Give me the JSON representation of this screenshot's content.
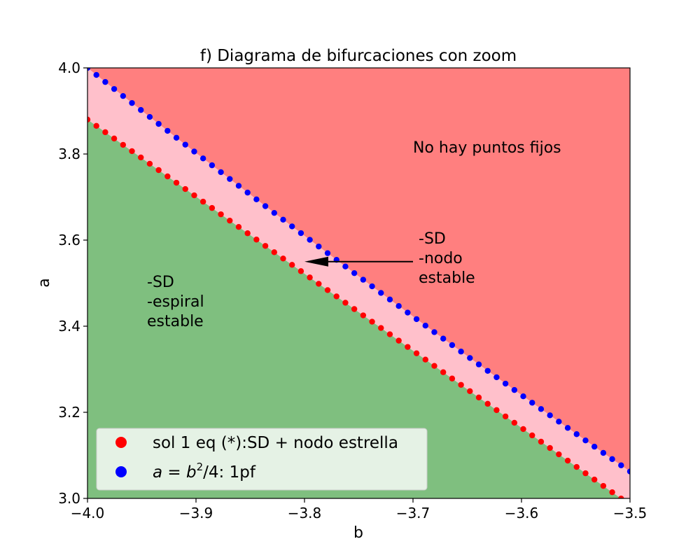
{
  "chart_data": {
    "type": "scatter",
    "title": "f) Diagrama de bifurcaciones con zoom",
    "xlabel": "b",
    "ylabel": "a",
    "xlim": [
      -4.0,
      -3.5
    ],
    "ylim": [
      3.0,
      4.0
    ],
    "x_ticks": [
      "−4.0",
      "−3.9",
      "−3.8",
      "−3.7",
      "−3.6",
      "−3.5"
    ],
    "y_ticks": [
      "3.0",
      "3.2",
      "3.4",
      "3.6",
      "3.8",
      "4.0"
    ],
    "x_tick_values": [
      -4.0,
      -3.9,
      -3.8,
      -3.7,
      -3.6,
      -3.5
    ],
    "y_tick_values": [
      3.0,
      3.2,
      3.4,
      3.6,
      3.8,
      4.0
    ],
    "grid": false,
    "legend_position": "lower-left",
    "series": [
      {
        "name": "sol 1 eq (*):SD + nodo estrella",
        "color": "#ff0000",
        "marker": "circle",
        "x_start": -4.0,
        "x_end": -3.5,
        "y_start": 3.88,
        "y_end": 2.985,
        "points": 62
      },
      {
        "name_prefix": "a = b",
        "name_sup": "2",
        "name_suffix": "/4: 1pf",
        "color": "#0000ff",
        "marker": "circle",
        "formula": "a=b^2/4",
        "points": 62
      }
    ],
    "regions": [
      {
        "name": "no-fixed-points",
        "color": "#ff7f7f"
      },
      {
        "name": "node-region",
        "color": "#ffc0cb"
      },
      {
        "name": "spiral-region",
        "color": "#7fbf7f"
      }
    ],
    "annotations": {
      "no_fixed": "No hay puntos fijos",
      "node": [
        "-SD",
        "-nodo",
        "estable"
      ],
      "spiral": [
        "-SD",
        "-espiral",
        "estable"
      ],
      "arrow": {
        "from": [
          -3.7,
          3.55
        ],
        "to": [
          -3.8,
          3.55
        ]
      }
    }
  }
}
